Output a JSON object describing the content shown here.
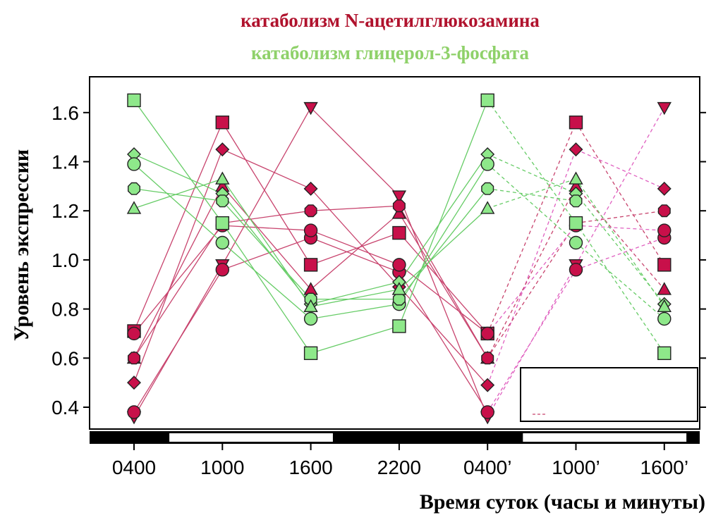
{
  "chart_data": {
    "type": "line",
    "title_red": "катаболизм N-ацетилглюкозамина",
    "title_green": "катаболизм глицерол-3-фосфата",
    "xlabel": "Время суток (часы и минуты)",
    "ylabel": "Уровень экспрессии",
    "categories": [
      "0400",
      "1000",
      "1600",
      "2200",
      "0400’",
      "1000’",
      "1600’"
    ],
    "y_ticks": [
      "0.4",
      "0.6",
      "0.8",
      "1.0",
      "1.2",
      "1.4",
      "1.6"
    ],
    "ylim": [
      0.3,
      1.75
    ],
    "colors": {
      "red": "#c8104a",
      "green": "#8ee88a",
      "red_line": "#c8446e",
      "green_line": "#66cc66",
      "pink_dash": "#e060c0"
    },
    "series": [
      {
        "group": "red",
        "marker": "triangle-down",
        "values": [
          0.36,
          0.98,
          1.62,
          1.26,
          0.36,
          0.98,
          1.62
        ]
      },
      {
        "group": "red",
        "marker": "square",
        "values": [
          0.71,
          1.56,
          0.98,
          1.11,
          0.7,
          1.56,
          0.98
        ]
      },
      {
        "group": "red",
        "marker": "diamond",
        "values": [
          0.5,
          1.45,
          1.29,
          0.89,
          0.49,
          1.45,
          1.29
        ]
      },
      {
        "group": "red",
        "marker": "triangle-up",
        "values": [
          0.6,
          1.3,
          0.88,
          1.19,
          0.6,
          1.3,
          0.88
        ]
      },
      {
        "group": "red",
        "marker": "circle",
        "values": [
          0.38,
          0.96,
          1.09,
          0.95,
          0.38,
          0.96,
          1.09
        ]
      },
      {
        "group": "red",
        "marker": "octagon",
        "values": [
          0.6,
          1.15,
          1.2,
          1.22,
          0.6,
          1.15,
          1.2
        ]
      },
      {
        "group": "red",
        "marker": "circle",
        "values": [
          0.7,
          1.14,
          1.12,
          0.98,
          0.7,
          1.14,
          1.12
        ]
      },
      {
        "group": "green",
        "marker": "square",
        "values": [
          1.65,
          1.15,
          0.62,
          0.73,
          1.65,
          1.15,
          0.62
        ]
      },
      {
        "group": "green",
        "marker": "diamond",
        "values": [
          1.43,
          1.27,
          0.82,
          0.91,
          1.43,
          1.27,
          0.82
        ]
      },
      {
        "group": "green",
        "marker": "circle",
        "values": [
          1.39,
          1.07,
          0.76,
          0.82,
          1.39,
          1.07,
          0.76
        ]
      },
      {
        "group": "green",
        "marker": "octagon",
        "values": [
          1.29,
          1.24,
          0.84,
          0.84,
          1.29,
          1.24,
          null
        ]
      },
      {
        "group": "green",
        "marker": "triangle-up",
        "values": [
          1.21,
          1.33,
          0.81,
          0.88,
          1.21,
          1.33,
          0.81
        ]
      }
    ],
    "day_night_bar": [
      {
        "from": 0,
        "to": 0.4,
        "state": "night"
      },
      {
        "from": 0.4,
        "to": 2.25,
        "state": "day"
      },
      {
        "from": 2.25,
        "to": 4.4,
        "state": "night"
      },
      {
        "from": 4.4,
        "to": 6.25,
        "state": "day"
      },
      {
        "from": 6.25,
        "to": 6.4,
        "state": "night"
      }
    ],
    "legend": {
      "placement": "bottom-right",
      "entries": []
    },
    "grid": false
  }
}
